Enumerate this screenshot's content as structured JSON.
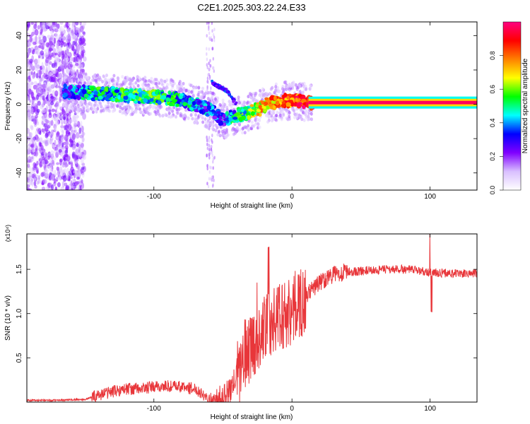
{
  "title": "C2E1.2025.303.22.24.E33",
  "chart_data": [
    {
      "type": "heatmap",
      "xlabel": "Height of straight line (km)",
      "ylabel": "Frequency (Hz)",
      "xlim": [
        -192,
        134
      ],
      "ylim": [
        -50,
        48
      ],
      "xticks": [
        -100,
        0,
        100
      ],
      "yticks": [
        -40,
        -20,
        0,
        20,
        40
      ],
      "colorbar": {
        "label": "Normalized spectral amplitude",
        "range": [
          0,
          1
        ],
        "ticks": [
          0.0,
          0.2,
          0.4,
          0.6,
          0.8
        ],
        "colors": [
          "#ffffff",
          "#d9bfff",
          "#8000ff",
          "#0000ff",
          "#00ffff",
          "#00ff00",
          "#ffff00",
          "#ff8000",
          "#ff0000",
          "#ff0080"
        ]
      },
      "ridge": {
        "x": [
          -172,
          -160,
          -150,
          -140,
          -130,
          -120,
          -110,
          -100,
          -92,
          -85,
          -78,
          -72,
          -66,
          -60,
          -56,
          -52,
          -48,
          -44,
          -40,
          -36,
          -32,
          -28,
          -24,
          -20,
          -16,
          -12,
          -8,
          -4,
          0,
          4,
          8,
          12,
          20,
          40,
          60,
          80,
          100,
          120,
          134
        ],
        "y": [
          8,
          7,
          7,
          6,
          6,
          5,
          5,
          4,
          4,
          3,
          2,
          0,
          -1,
          -3,
          -5,
          -8,
          -9,
          -7,
          -6,
          -6,
          -5,
          -4,
          -3,
          -1,
          1,
          1,
          2,
          2,
          2,
          2,
          1.5,
          1,
          1,
          1,
          1,
          1,
          1,
          1,
          1
        ],
        "amplitude": [
          0.3,
          0.35,
          0.4,
          0.45,
          0.45,
          0.5,
          0.5,
          0.5,
          0.45,
          0.45,
          0.4,
          0.4,
          0.35,
          0.35,
          0.35,
          0.3,
          0.35,
          0.4,
          0.45,
          0.5,
          0.55,
          0.6,
          0.65,
          0.7,
          0.75,
          0.75,
          0.8,
          0.8,
          0.85,
          0.85,
          0.9,
          0.95,
          0.97,
          0.97,
          0.97,
          0.97,
          0.97,
          0.97,
          0.97
        ]
      },
      "side_branch": {
        "x": [
          -58,
          -55,
          -52,
          -49,
          -46,
          -43,
          -40
        ],
        "y": [
          13,
          11,
          10,
          9,
          7,
          3,
          0
        ]
      }
    },
    {
      "type": "line",
      "xlabel": "Height of straight line (km)",
      "ylabel": "SNR (10 * v/v)",
      "y_multiplier_label": "(x10⁴)",
      "xlim": [
        -192,
        134
      ],
      "ylim": [
        0,
        1.9
      ],
      "xticks": [
        -100,
        0,
        100
      ],
      "yticks": [
        0.5,
        1.0,
        1.5
      ],
      "color": "#e8363a",
      "series": [
        {
          "x": [
            -192,
            -170,
            -150,
            -140,
            -130,
            -120,
            -110,
            -100,
            -90,
            -80,
            -70,
            -65,
            -60,
            -55,
            -50,
            -45,
            -40,
            -35,
            -30,
            -25,
            -20,
            -15,
            -10,
            -5,
            0,
            5,
            10,
            15,
            20,
            25,
            30,
            40,
            50,
            60,
            70,
            80,
            90,
            95,
            100,
            105,
            110,
            120,
            134
          ],
          "y": [
            0.02,
            0.02,
            0.03,
            0.08,
            0.12,
            0.15,
            0.15,
            0.17,
            0.18,
            0.17,
            0.15,
            0.1,
            0.04,
            0.02,
            0.05,
            0.12,
            0.3,
            0.5,
            0.65,
            0.75,
            0.85,
            0.9,
            0.95,
            1.0,
            1.05,
            1.1,
            1.2,
            1.28,
            1.35,
            1.4,
            1.44,
            1.47,
            1.48,
            1.49,
            1.5,
            1.5,
            1.49,
            1.48,
            1.47,
            1.46,
            1.46,
            1.45,
            1.45
          ]
        }
      ]
    }
  ]
}
